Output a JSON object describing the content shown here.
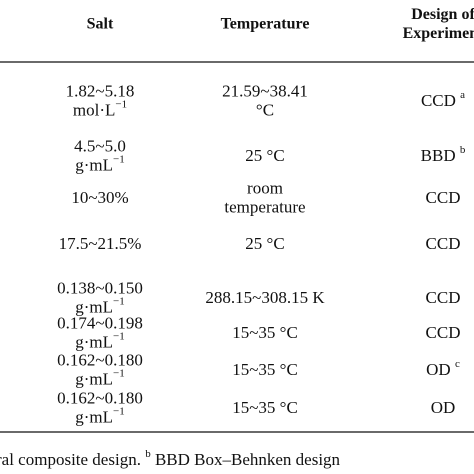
{
  "table": {
    "header": [
      [
        "Salt"
      ],
      [
        "Temperature"
      ],
      [
        "Design of",
        "Experiment"
      ]
    ],
    "rows": [
      [
        [
          "1.82~5.18",
          {
            "text": "mol·L",
            "sup": "−1"
          }
        ],
        [
          "21.59~38.41",
          "°C"
        ],
        [
          {
            "text": "CCD ",
            "sup": "a"
          }
        ]
      ],
      [
        [
          "4.5~5.0",
          {
            "text": "g·mL",
            "sup": "−1"
          }
        ],
        [
          "25 °C"
        ],
        [
          {
            "text": "BBD ",
            "sup": "b"
          }
        ]
      ],
      [
        [
          "10~30%"
        ],
        [
          "room",
          "temperature"
        ],
        [
          "CCD"
        ]
      ],
      [
        [
          "17.5~21.5%"
        ],
        [
          "25 °C"
        ],
        [
          "CCD"
        ]
      ],
      [
        [
          "0.138~0.150",
          {
            "text": "g·mL",
            "sup": "−1"
          }
        ],
        [
          "288.15~308.15 K"
        ],
        [
          "CCD"
        ]
      ],
      [
        [
          "0.174~0.198",
          {
            "text": "g·mL",
            "sup": "−1"
          }
        ],
        [
          "15~35 °C"
        ],
        [
          "CCD"
        ]
      ],
      [
        [
          "0.162~0.180",
          {
            "text": "g·mL",
            "sup": "−1"
          }
        ],
        [
          "15~35 °C"
        ],
        [
          {
            "text": "OD ",
            "sup": "c"
          }
        ]
      ],
      [
        [
          "0.162~0.180",
          {
            "text": "g·mL",
            "sup": "−1"
          }
        ],
        [
          "15~35 °C"
        ],
        [
          "OD"
        ]
      ]
    ]
  },
  "footnote": {
    "before": "ral composite design. ",
    "sup": "b",
    "after": " BBD Box–Behnken design"
  }
}
